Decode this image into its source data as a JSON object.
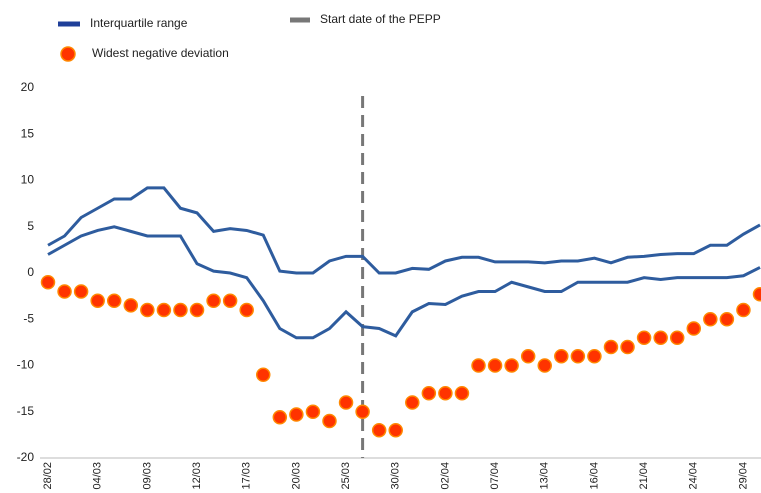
{
  "chart_data": {
    "type": "line",
    "categories": [
      "28/02",
      null,
      null,
      "04/03",
      null,
      null,
      "09/03",
      null,
      null,
      "12/03",
      null,
      null,
      "17/03",
      null,
      null,
      "20/03",
      null,
      null,
      "25/03",
      null,
      null,
      "30/03",
      null,
      null,
      "02/04",
      null,
      null,
      "07/04",
      null,
      null,
      "13/04",
      null,
      null,
      "16/04",
      null,
      null,
      "21/04",
      null,
      null,
      "24/04",
      null,
      null,
      "29/04",
      null
    ],
    "series": [
      {
        "name": "Interquartile range",
        "color": "#2e5c9e",
        "values": [
          3,
          4,
          6,
          7,
          8,
          8,
          9.2,
          9.2,
          7,
          6.5,
          4.5,
          4.8,
          4.6,
          4.1,
          0.2,
          0,
          0,
          1.3,
          1.8,
          1.8,
          0,
          0,
          0.5,
          0.4,
          1.3,
          1.7,
          1.7,
          1.2,
          1.2,
          1.2,
          1.1,
          1.3,
          1.3,
          1.6,
          1.1,
          1.7,
          1.8,
          2,
          2.1,
          2.1,
          3,
          3,
          4.2,
          5.2
        ],
        "values_lower": [
          2,
          3,
          4,
          4.6,
          5,
          4.5,
          4,
          4,
          4,
          1,
          0.2,
          0,
          -0.5,
          -3,
          -6,
          -7,
          -7,
          -6,
          -4.2,
          -5.8,
          -6,
          -6.8,
          -4.2,
          -3.3,
          -3.4,
          -2.5,
          -2,
          -2,
          -1,
          -1.5,
          -2,
          -2,
          -1,
          -1,
          -1,
          -1,
          -0.5,
          -0.7,
          -0.5,
          -0.5,
          -0.5,
          -0.5,
          -0.3,
          0.6
        ]
      },
      {
        "name": "Widest negative deviation",
        "color": "#ff3300",
        "values": [
          -1,
          -2,
          -2,
          -3,
          -3,
          -3.5,
          -4,
          -4,
          -4,
          -4,
          -3,
          -3,
          -4,
          -11,
          -15.6,
          -15.3,
          -15,
          -16,
          -14,
          -15,
          -17,
          -17,
          -14,
          -13,
          -13,
          -13,
          -10,
          -10,
          -10,
          -9,
          -10,
          -9,
          -9,
          -9,
          -8,
          -8,
          -7,
          -7,
          -7,
          -6,
          -5,
          -5,
          -4,
          -2.3
        ]
      }
    ],
    "marker_line": {
      "name": "Start date of the PEPP",
      "color": "#777777",
      "x": 19
    },
    "ylim": [
      -20,
      20
    ],
    "yticks": [
      -20,
      -15,
      -10,
      -5,
      0,
      5,
      10,
      15,
      20
    ],
    "grid": false
  }
}
